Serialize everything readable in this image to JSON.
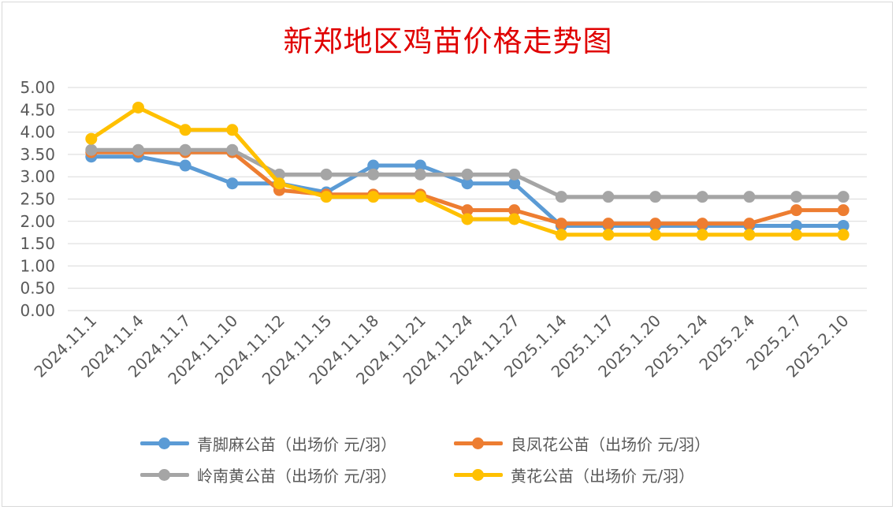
{
  "chart_data": {
    "type": "line",
    "title": "新郑地区鸡苗价格走势图",
    "xlabel": "",
    "ylabel": "",
    "ylim": [
      0,
      5
    ],
    "yticks": [
      "0.00",
      "0.50",
      "1.00",
      "1.50",
      "2.00",
      "2.50",
      "3.00",
      "3.50",
      "4.00",
      "4.50",
      "5.00"
    ],
    "grid": true,
    "legend_position": "bottom",
    "categories": [
      "2024.11.1",
      "2024.11.4",
      "2024.11.7",
      "2024.11.10",
      "2024.11.12",
      "2024.11.15",
      "2024.11.18",
      "2024.11.21",
      "2024.11.24",
      "2024.11.27",
      "2025.1.14",
      "2025.1.17",
      "2025.1.20",
      "2025.1.24",
      "2025.2.4",
      "2025.2.7",
      "2025.2.10"
    ],
    "series": [
      {
        "name": "青脚麻公苗（出场价 元/羽）",
        "color": "#5b9bd5",
        "values": [
          3.45,
          3.45,
          3.25,
          2.85,
          2.85,
          2.65,
          3.25,
          3.25,
          2.85,
          2.85,
          1.9,
          1.9,
          1.9,
          1.9,
          1.9,
          1.9,
          1.9
        ]
      },
      {
        "name": "良凤花公苗（出场价 元/羽）",
        "color": "#ed7d31",
        "values": [
          3.55,
          3.55,
          3.55,
          3.55,
          2.7,
          2.6,
          2.6,
          2.6,
          2.25,
          2.25,
          1.95,
          1.95,
          1.95,
          1.95,
          1.95,
          2.25,
          2.25
        ]
      },
      {
        "name": "岭南黄公苗（出场价 元/羽）",
        "color": "#a5a5a5",
        "values": [
          3.6,
          3.6,
          3.6,
          3.6,
          3.05,
          3.05,
          3.05,
          3.05,
          3.05,
          3.05,
          2.55,
          2.55,
          2.55,
          2.55,
          2.55,
          2.55,
          2.55
        ]
      },
      {
        "name": "黄花公苗（出场价 元/羽）",
        "color": "#ffc000",
        "values": [
          3.85,
          4.55,
          4.05,
          4.05,
          2.85,
          2.55,
          2.55,
          2.55,
          2.05,
          2.05,
          1.7,
          1.7,
          1.7,
          1.7,
          1.7,
          1.7,
          1.7
        ]
      }
    ]
  }
}
